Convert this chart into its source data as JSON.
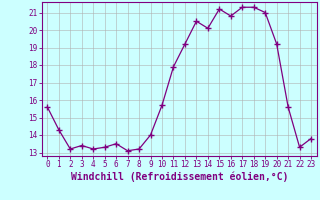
{
  "x": [
    0,
    1,
    2,
    3,
    4,
    5,
    6,
    7,
    8,
    9,
    10,
    11,
    12,
    13,
    14,
    15,
    16,
    17,
    18,
    19,
    20,
    21,
    22,
    23
  ],
  "y": [
    15.6,
    14.3,
    13.2,
    13.4,
    13.2,
    13.3,
    13.5,
    13.1,
    13.2,
    14.0,
    15.7,
    17.9,
    19.2,
    20.5,
    20.1,
    21.2,
    20.8,
    21.3,
    21.3,
    21.0,
    19.2,
    15.6,
    13.3,
    13.8
  ],
  "line_color": "#800080",
  "marker": "+",
  "marker_size": 4,
  "marker_linewidth": 1.0,
  "background_color": "#CCFFFF",
  "grid_color": "#b0b0b0",
  "xlabel": "Windchill (Refroidissement éolien,°C)",
  "ylabel": "",
  "ylim": [
    12.8,
    21.6
  ],
  "xlim": [
    -0.5,
    23.5
  ],
  "yticks": [
    13,
    14,
    15,
    16,
    17,
    18,
    19,
    20,
    21
  ],
  "xticks": [
    0,
    1,
    2,
    3,
    4,
    5,
    6,
    7,
    8,
    9,
    10,
    11,
    12,
    13,
    14,
    15,
    16,
    17,
    18,
    19,
    20,
    21,
    22,
    23
  ],
  "tick_color": "#800080",
  "tick_fontsize": 5.5,
  "xlabel_fontsize": 7.0,
  "spine_color": "#800080",
  "line_width": 0.9
}
